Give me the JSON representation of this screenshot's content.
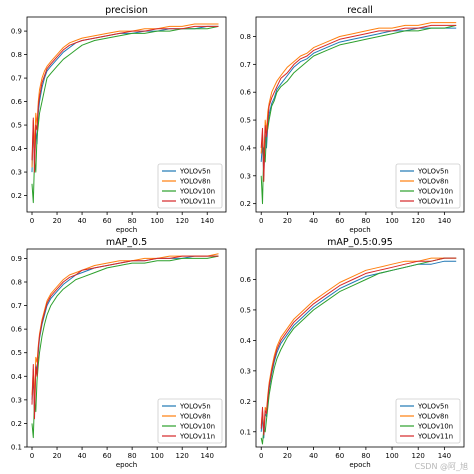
{
  "watermark": "CSDN @阿_旭",
  "chart_data": [
    {
      "type": "line",
      "title": "precision",
      "xlabel": "epoch",
      "ylabel": "",
      "xlim": [
        -4,
        155
      ],
      "ylim": [
        0.13,
        0.96
      ],
      "xticks": [
        0,
        20,
        40,
        60,
        80,
        100,
        120,
        140
      ],
      "yticks": [
        0.2,
        0.3,
        0.4,
        0.5,
        0.6,
        0.7,
        0.8,
        0.9
      ],
      "ytick_labels": [
        "0.2",
        "0.3",
        "0.4",
        "0.5",
        "0.6",
        "0.7",
        "0.8",
        "0.9"
      ],
      "legend_position": "lower-right",
      "x": [
        0,
        1,
        2,
        3,
        4,
        5,
        6,
        8,
        10,
        12,
        15,
        20,
        25,
        30,
        35,
        40,
        50,
        60,
        70,
        80,
        90,
        100,
        110,
        120,
        130,
        140,
        149
      ],
      "series": [
        {
          "name": "YOLOv5n",
          "color": "#1f77b4",
          "values": [
            0.3,
            0.5,
            0.33,
            0.48,
            0.42,
            0.55,
            0.6,
            0.66,
            0.7,
            0.73,
            0.75,
            0.78,
            0.81,
            0.83,
            0.85,
            0.86,
            0.87,
            0.88,
            0.89,
            0.89,
            0.9,
            0.9,
            0.91,
            0.91,
            0.91,
            0.92,
            0.92
          ]
        },
        {
          "name": "YOLOv8n",
          "color": "#ff7f0e",
          "values": [
            0.32,
            0.52,
            0.4,
            0.55,
            0.5,
            0.6,
            0.65,
            0.7,
            0.73,
            0.75,
            0.77,
            0.8,
            0.83,
            0.85,
            0.86,
            0.87,
            0.88,
            0.89,
            0.9,
            0.9,
            0.91,
            0.91,
            0.92,
            0.92,
            0.93,
            0.93,
            0.93
          ]
        },
        {
          "name": "YOLOv10n",
          "color": "#2ca02c",
          "values": [
            0.25,
            0.17,
            0.35,
            0.3,
            0.45,
            0.5,
            0.55,
            0.6,
            0.65,
            0.7,
            0.72,
            0.75,
            0.78,
            0.8,
            0.82,
            0.84,
            0.86,
            0.87,
            0.88,
            0.89,
            0.89,
            0.9,
            0.9,
            0.91,
            0.91,
            0.91,
            0.92
          ]
        },
        {
          "name": "YOLOv11n",
          "color": "#d62728",
          "values": [
            0.35,
            0.53,
            0.3,
            0.5,
            0.48,
            0.58,
            0.62,
            0.68,
            0.71,
            0.74,
            0.76,
            0.79,
            0.82,
            0.84,
            0.85,
            0.86,
            0.87,
            0.88,
            0.89,
            0.9,
            0.9,
            0.91,
            0.91,
            0.91,
            0.92,
            0.92,
            0.92
          ]
        }
      ]
    },
    {
      "type": "line",
      "title": "recall",
      "xlabel": "epoch",
      "ylabel": "",
      "xlim": [
        -4,
        155
      ],
      "ylim": [
        0.17,
        0.87
      ],
      "xticks": [
        0,
        20,
        40,
        60,
        80,
        100,
        120,
        140
      ],
      "yticks": [
        0.2,
        0.3,
        0.4,
        0.5,
        0.6,
        0.7,
        0.8
      ],
      "ytick_labels": [
        "0.2",
        "0.3",
        "0.4",
        "0.5",
        "0.6",
        "0.7",
        "0.8"
      ],
      "legend_position": "lower-right",
      "x": [
        0,
        1,
        2,
        3,
        4,
        5,
        6,
        8,
        10,
        12,
        15,
        20,
        25,
        30,
        35,
        40,
        50,
        60,
        70,
        80,
        90,
        100,
        110,
        120,
        130,
        140,
        149
      ],
      "series": [
        {
          "name": "YOLOv5n",
          "color": "#1f77b4",
          "values": [
            0.35,
            0.42,
            0.3,
            0.45,
            0.4,
            0.48,
            0.52,
            0.56,
            0.58,
            0.61,
            0.63,
            0.66,
            0.69,
            0.71,
            0.72,
            0.74,
            0.76,
            0.78,
            0.79,
            0.8,
            0.81,
            0.82,
            0.82,
            0.83,
            0.83,
            0.83,
            0.83
          ]
        },
        {
          "name": "YOLOv8n",
          "color": "#ff7f0e",
          "values": [
            0.38,
            0.45,
            0.35,
            0.5,
            0.46,
            0.53,
            0.56,
            0.6,
            0.62,
            0.64,
            0.66,
            0.69,
            0.71,
            0.73,
            0.74,
            0.76,
            0.78,
            0.8,
            0.81,
            0.82,
            0.83,
            0.83,
            0.84,
            0.84,
            0.85,
            0.85,
            0.85
          ]
        },
        {
          "name": "YOLOv10n",
          "color": "#2ca02c",
          "values": [
            0.3,
            0.2,
            0.4,
            0.35,
            0.45,
            0.47,
            0.5,
            0.55,
            0.57,
            0.6,
            0.62,
            0.64,
            0.67,
            0.69,
            0.71,
            0.73,
            0.75,
            0.77,
            0.78,
            0.79,
            0.8,
            0.81,
            0.82,
            0.82,
            0.83,
            0.83,
            0.84
          ]
        },
        {
          "name": "YOLOv11n",
          "color": "#d62728",
          "values": [
            0.4,
            0.47,
            0.28,
            0.48,
            0.44,
            0.5,
            0.55,
            0.58,
            0.6,
            0.62,
            0.65,
            0.67,
            0.7,
            0.72,
            0.73,
            0.75,
            0.77,
            0.79,
            0.8,
            0.81,
            0.82,
            0.82,
            0.83,
            0.83,
            0.84,
            0.84,
            0.84
          ]
        }
      ]
    },
    {
      "type": "line",
      "title": "mAP_0.5",
      "xlabel": "epoch",
      "ylabel": "",
      "xlim": [
        -4,
        155
      ],
      "ylim": [
        0.1,
        0.94
      ],
      "xticks": [
        0,
        20,
        40,
        60,
        80,
        100,
        120,
        140
      ],
      "yticks": [
        0.1,
        0.2,
        0.3,
        0.4,
        0.5,
        0.6,
        0.7,
        0.8,
        0.9
      ],
      "ytick_labels": [
        "0.1",
        "0.2",
        "0.3",
        "0.4",
        "0.5",
        "0.6",
        "0.7",
        "0.8",
        "0.9"
      ],
      "legend_position": "lower-right",
      "x": [
        0,
        1,
        2,
        3,
        4,
        5,
        6,
        8,
        10,
        12,
        15,
        20,
        25,
        30,
        35,
        40,
        50,
        60,
        70,
        80,
        90,
        100,
        110,
        120,
        130,
        140,
        149
      ],
      "series": [
        {
          "name": "YOLOv5n",
          "color": "#1f77b4",
          "values": [
            0.3,
            0.4,
            0.25,
            0.45,
            0.42,
            0.5,
            0.56,
            0.62,
            0.66,
            0.7,
            0.73,
            0.76,
            0.79,
            0.81,
            0.83,
            0.84,
            0.86,
            0.87,
            0.88,
            0.89,
            0.89,
            0.9,
            0.9,
            0.9,
            0.91,
            0.91,
            0.91
          ]
        },
        {
          "name": "YOLOv8n",
          "color": "#ff7f0e",
          "values": [
            0.32,
            0.43,
            0.3,
            0.48,
            0.46,
            0.53,
            0.58,
            0.64,
            0.68,
            0.72,
            0.75,
            0.78,
            0.81,
            0.83,
            0.84,
            0.85,
            0.87,
            0.88,
            0.89,
            0.89,
            0.9,
            0.9,
            0.91,
            0.91,
            0.91,
            0.91,
            0.92
          ]
        },
        {
          "name": "YOLOv10n",
          "color": "#2ca02c",
          "values": [
            0.2,
            0.14,
            0.3,
            0.25,
            0.38,
            0.45,
            0.5,
            0.57,
            0.62,
            0.66,
            0.7,
            0.74,
            0.77,
            0.79,
            0.81,
            0.82,
            0.84,
            0.86,
            0.87,
            0.88,
            0.88,
            0.89,
            0.89,
            0.9,
            0.9,
            0.9,
            0.91
          ]
        },
        {
          "name": "YOLOv11n",
          "color": "#d62728",
          "values": [
            0.28,
            0.45,
            0.22,
            0.44,
            0.4,
            0.52,
            0.57,
            0.63,
            0.67,
            0.71,
            0.74,
            0.77,
            0.8,
            0.82,
            0.83,
            0.85,
            0.86,
            0.87,
            0.88,
            0.89,
            0.89,
            0.9,
            0.9,
            0.91,
            0.91,
            0.91,
            0.91
          ]
        }
      ]
    },
    {
      "type": "line",
      "title": "mAP_0.5:0.95",
      "xlabel": "epoch",
      "ylabel": "",
      "xlim": [
        -4,
        155
      ],
      "ylim": [
        0.05,
        0.7
      ],
      "xticks": [
        0,
        20,
        40,
        60,
        80,
        100,
        120,
        140
      ],
      "yticks": [
        0.1,
        0.2,
        0.3,
        0.4,
        0.5,
        0.6
      ],
      "ytick_labels": [
        "0.1",
        "0.2",
        "0.3",
        "0.4",
        "0.5",
        "0.6"
      ],
      "legend_position": "lower-right",
      "x": [
        0,
        1,
        2,
        3,
        4,
        5,
        6,
        8,
        10,
        12,
        15,
        20,
        25,
        30,
        35,
        40,
        50,
        60,
        70,
        80,
        90,
        100,
        110,
        120,
        130,
        140,
        149
      ],
      "series": [
        {
          "name": "YOLOv5n",
          "color": "#1f77b4",
          "values": [
            0.1,
            0.15,
            0.08,
            0.16,
            0.15,
            0.2,
            0.24,
            0.29,
            0.33,
            0.36,
            0.39,
            0.42,
            0.45,
            0.47,
            0.49,
            0.51,
            0.54,
            0.57,
            0.59,
            0.61,
            0.62,
            0.63,
            0.64,
            0.65,
            0.65,
            0.66,
            0.66
          ]
        },
        {
          "name": "YOLOv8n",
          "color": "#ff7f0e",
          "values": [
            0.12,
            0.17,
            0.1,
            0.18,
            0.17,
            0.22,
            0.26,
            0.31,
            0.35,
            0.38,
            0.41,
            0.44,
            0.47,
            0.49,
            0.51,
            0.53,
            0.56,
            0.59,
            0.61,
            0.63,
            0.64,
            0.65,
            0.66,
            0.66,
            0.67,
            0.67,
            0.67
          ]
        },
        {
          "name": "YOLOv10n",
          "color": "#2ca02c",
          "values": [
            0.08,
            0.06,
            0.11,
            0.1,
            0.14,
            0.18,
            0.22,
            0.27,
            0.31,
            0.34,
            0.37,
            0.41,
            0.44,
            0.46,
            0.48,
            0.5,
            0.53,
            0.56,
            0.58,
            0.6,
            0.62,
            0.63,
            0.64,
            0.65,
            0.66,
            0.67,
            0.67
          ]
        },
        {
          "name": "YOLOv11n",
          "color": "#d62728",
          "values": [
            0.11,
            0.18,
            0.09,
            0.17,
            0.16,
            0.21,
            0.25,
            0.3,
            0.34,
            0.37,
            0.4,
            0.43,
            0.46,
            0.48,
            0.5,
            0.52,
            0.55,
            0.58,
            0.6,
            0.62,
            0.63,
            0.64,
            0.65,
            0.66,
            0.66,
            0.67,
            0.67
          ]
        }
      ]
    }
  ]
}
